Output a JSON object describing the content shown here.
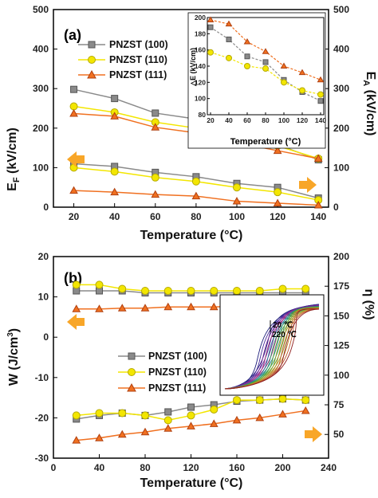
{
  "chart_data": [
    {
      "id": "a",
      "type": "line",
      "panel_label": "(a)",
      "xlabel": "Temperature (°C)",
      "ylabel_left": "E",
      "ylabel_left_sub": "F",
      "ylabel_left_unit": " (kV/cm)",
      "ylabel_right": "E",
      "ylabel_right_sub": "A",
      "ylabel_right_unit": " (kV/cm)",
      "x": [
        20,
        40,
        60,
        80,
        100,
        120,
        140
      ],
      "xlim": [
        10,
        145
      ],
      "xticks": [
        "20",
        "40",
        "60",
        "80",
        "100",
        "120",
        "140"
      ],
      "ylim": [
        0,
        500
      ],
      "yticks": [
        "0",
        "100",
        "200",
        "300",
        "400",
        "500"
      ],
      "y2ticks": [
        "0",
        "100",
        "200",
        "300",
        "400",
        "500"
      ],
      "legend": [
        "PNZST (100)",
        "PNZST (110)",
        "PNZST (111)"
      ],
      "series": [
        {
          "name": "PNZST (100)",
          "color": "#8a8a8a",
          "marker": "square",
          "upper": [
            298,
            275,
            238,
            223,
            180,
            158,
            120
          ],
          "lower": [
            110,
            103,
            88,
            77,
            60,
            50,
            23
          ]
        },
        {
          "name": "PNZST (110)",
          "color": "#f3e600",
          "marker": "circle",
          "upper": [
            255,
            240,
            215,
            200,
            175,
            155,
            123
          ],
          "lower": [
            100,
            90,
            75,
            65,
            50,
            38,
            18
          ]
        },
        {
          "name": "PNZST (111)",
          "color": "#f07020",
          "marker": "triangle",
          "upper": [
            237,
            230,
            202,
            188,
            163,
            143,
            123
          ],
          "lower": [
            42,
            38,
            32,
            28,
            15,
            10,
            5
          ]
        }
      ],
      "inset": {
        "ylabel": "△E (kV/cm)",
        "xlabel": "Temperature (°C)",
        "xticks": [
          "20",
          "40",
          "60",
          "80",
          "100",
          "120",
          "140"
        ],
        "yticks": [
          "80",
          "100",
          "120",
          "140",
          "160",
          "180",
          "200"
        ],
        "ylim": [
          80,
          200
        ],
        "series": [
          {
            "name": "PNZST (100)",
            "color": "#8a8a8a",
            "marker": "square",
            "values": [
              188,
              173,
              152,
              145,
              123,
              108,
              97
            ]
          },
          {
            "name": "PNZST (110)",
            "color": "#f3e600",
            "marker": "circle",
            "values": [
              157,
              150,
              140,
              137,
              120,
              110,
              105
            ]
          },
          {
            "name": "PNZST (111)",
            "color": "#f07020",
            "marker": "triangle",
            "values": [
              197,
              192,
              170,
              158,
              140,
              132,
              123
            ]
          }
        ]
      }
    },
    {
      "id": "b",
      "type": "line",
      "panel_label": "(b)",
      "xlabel": "Temperature (°C)",
      "ylabel_left": "W (J/cm",
      "ylabel_left_sup": "3",
      "ylabel_left_tail": ")",
      "ylabel_right": "η (%)",
      "x": [
        20,
        40,
        60,
        80,
        100,
        120,
        140,
        160,
        180,
        200,
        220
      ],
      "xlim": [
        0,
        240
      ],
      "xticks": [
        "0",
        "40",
        "80",
        "120",
        "160",
        "200",
        "240"
      ],
      "ylim": [
        -30,
        20
      ],
      "yticks": [
        "-30",
        "-20",
        "-10",
        "0",
        "10",
        "20"
      ],
      "y2lim": [
        30,
        200
      ],
      "y2ticks": [
        "50",
        "75",
        "100",
        "125",
        "150",
        "175",
        "200"
      ],
      "legend": [
        "PNZST (100)",
        "PNZST (110)",
        "PNZST (111)"
      ],
      "inset_labels": [
        "20 ℃",
        "220 ℃"
      ],
      "series": [
        {
          "name": "PNZST (100)",
          "color": "#8a8a8a",
          "marker": "square",
          "W": [
            11.5,
            11.5,
            11.5,
            11.0,
            11.0,
            11.0,
            11.0,
            11.0,
            11.0,
            11.0,
            11.0
          ],
          "eta": [
            63,
            66,
            68,
            66,
            69,
            73,
            75,
            78,
            79,
            80,
            79
          ]
        },
        {
          "name": "PNZST (110)",
          "color": "#f3e600",
          "marker": "circle",
          "W": [
            13.0,
            13.0,
            12.0,
            11.5,
            11.5,
            11.5,
            11.5,
            11.5,
            11.5,
            12.0,
            12.0
          ],
          "eta": [
            66,
            68,
            68,
            66,
            62,
            66,
            71,
            79,
            79,
            80,
            79
          ]
        },
        {
          "name": "PNZST (111)",
          "color": "#f07020",
          "marker": "triangle",
          "W": [
            7.0,
            7.0,
            7.2,
            7.2,
            7.5,
            7.5,
            7.5,
            7.7,
            7.7,
            8.2,
            8.7
          ],
          "eta": [
            45,
            47,
            50,
            52,
            55,
            57,
            59,
            62,
            64,
            67,
            70
          ]
        }
      ]
    }
  ]
}
